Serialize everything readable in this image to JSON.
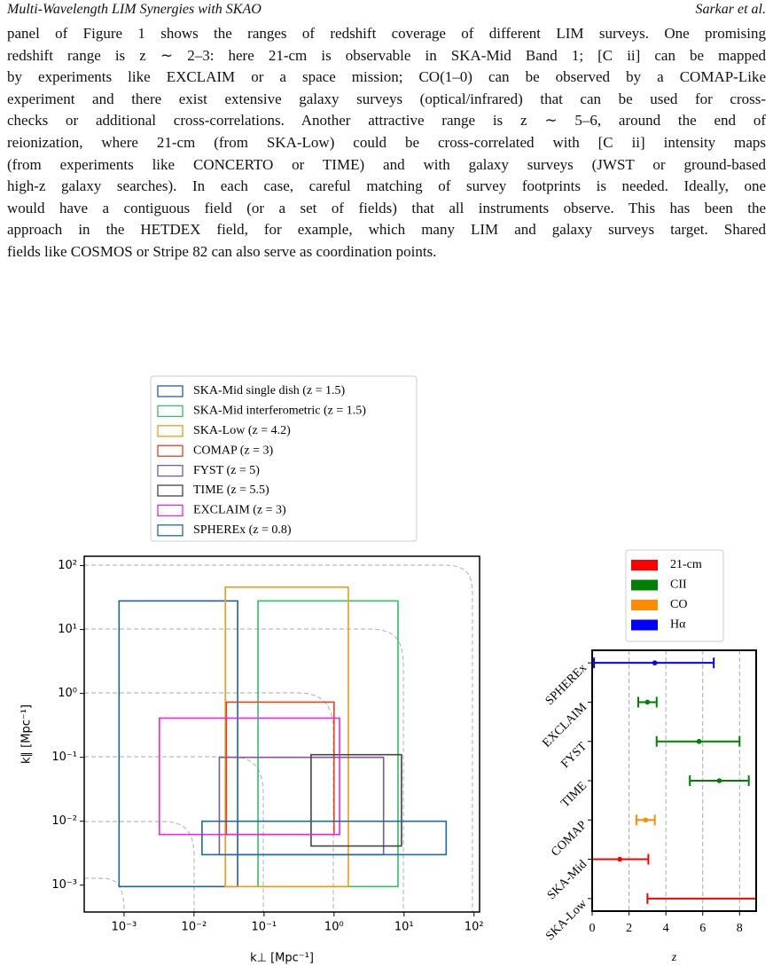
{
  "header": {
    "title": "Multi-Wavelength LIM Synergies with SKAO",
    "authors": "Sarkar et al."
  },
  "paragraph": [
    "panel of Figure 1 shows the ranges of redshift coverage of different LIM surveys. One promising",
    "redshift range is z ∼ 2–3: here 21-cm is observable in SKA-Mid Band 1; [C ii] can be mapped",
    "by experiments like EXCLAIM or a space mission; CO(1–0) can be observed by a COMAP-Like",
    "experiment and there exist extensive galaxy surveys (optical/infrared) that can be used for cross-",
    "checks or additional cross-correlations. Another attractive range is z ∼ 5–6, around the end of",
    "reionization, where 21-cm (from SKA-Low) could be cross-correlated with [C ii] intensity maps",
    "(from experiments like CONCERTO or TIME) and with galaxy surveys (JWST or ground-based",
    "high-z galaxy searches). In each case, careful matching of survey footprints is needed. Ideally, one",
    "would have a contiguous field (or a set of fields) that all instruments observe. This has been the",
    "approach in the HETDEX field, for example, which many LIM and galaxy surveys target. Shared",
    "fields like COSMOS or Stripe 82 can also serve as coordination points."
  ],
  "chart_data": [
    {
      "type": "rectangles",
      "xlabel": "k⊥ [Mpc⁻¹]",
      "ylabel": "k∥ [Mpc⁻¹]",
      "xscale": "log",
      "yscale": "log",
      "xlim": [
        0.00027,
        120
      ],
      "ylim": [
        0.00038,
        140
      ],
      "xticks": [
        {
          "value": 0.001,
          "label": "10⁻³"
        },
        {
          "value": 0.01,
          "label": "10⁻²"
        },
        {
          "value": 0.1,
          "label": "10⁻¹"
        },
        {
          "value": 1,
          "label": "10⁰"
        },
        {
          "value": 10,
          "label": "10¹"
        },
        {
          "value": 100,
          "label": "10²"
        }
      ],
      "yticks": [
        {
          "value": 0.001,
          "label": "10⁻³"
        },
        {
          "value": 0.01,
          "label": "10⁻²"
        },
        {
          "value": 0.1,
          "label": "10⁻¹"
        },
        {
          "value": 1,
          "label": "10⁰"
        },
        {
          "value": 10,
          "label": "10¹"
        },
        {
          "value": 100,
          "label": "10²"
        }
      ],
      "legend": "above",
      "series": [
        {
          "name": "SKA-Mid single dish (z = 1.5)",
          "color": "#1f5fa0",
          "x_range": [
            0.00085,
            0.042
          ],
          "y_range": [
            0.00095,
            28
          ]
        },
        {
          "name": "SKA-Mid interferometric (z = 1.5)",
          "color": "#2fbf64",
          "x_range": [
            0.082,
            8.2
          ],
          "y_range": [
            0.00095,
            28
          ]
        },
        {
          "name": "SKA-Low (z = 4.2)",
          "color": "#f39c12",
          "x_range": [
            0.028,
            1.6
          ],
          "y_range": [
            0.00095,
            46
          ]
        },
        {
          "name": "COMAP (z = 3)",
          "color": "#e8401c",
          "x_range": [
            0.029,
            1.0
          ],
          "y_range": [
            0.0062,
            0.73
          ]
        },
        {
          "name": "FYST (z = 5)",
          "color": "#7d5a8c",
          "x_range": [
            0.023,
            5.1
          ],
          "y_range": [
            0.003,
            0.1
          ]
        },
        {
          "name": "TIME (z = 5.5)",
          "color": "#444444",
          "x_range": [
            0.47,
            9.2
          ],
          "y_range": [
            0.0041,
            0.11
          ]
        },
        {
          "name": "EXCLAIM (z = 3)",
          "color": "#ee22ee",
          "x_range": [
            0.0032,
            1.2
          ],
          "y_range": [
            0.0062,
            0.41
          ]
        },
        {
          "name": "SPHEREx (z = 0.8)",
          "color": "#1f6aa5",
          "x_range": [
            0.013,
            40
          ],
          "y_range": [
            0.003,
            0.01
          ]
        }
      ]
    },
    {
      "type": "errorbar",
      "orientation": "horizontal",
      "xlabel": "z",
      "categories": [
        "SPHEREx",
        "EXCLAIM",
        "FYST",
        "TIME",
        "COMAP",
        "SKA-Mid",
        "SKA-Low"
      ],
      "values": [
        3.4,
        3,
        5.8,
        6.9,
        2.9,
        1.5,
        null
      ],
      "low": [
        0.1,
        2.5,
        3.5,
        5.3,
        2.4,
        0,
        3
      ],
      "high": [
        6.6,
        3.5,
        8,
        8.5,
        3.4,
        3.05,
        9
      ],
      "colors": [
        "#0000ff",
        "#008000",
        "#008000",
        "#008000",
        "#ff8c00",
        "#ff0000",
        "#ff0000"
      ],
      "xlim": [
        0,
        8.9
      ],
      "xticks": [
        0,
        2,
        4,
        6,
        8
      ],
      "grid": true,
      "legend": [
        {
          "name": "21-cm",
          "color": "#ff0000"
        },
        {
          "name": "CII",
          "color": "#008000"
        },
        {
          "name": "CO",
          "color": "#ff8c00"
        },
        {
          "name": "Hα",
          "color": "#0000ff"
        }
      ]
    }
  ]
}
